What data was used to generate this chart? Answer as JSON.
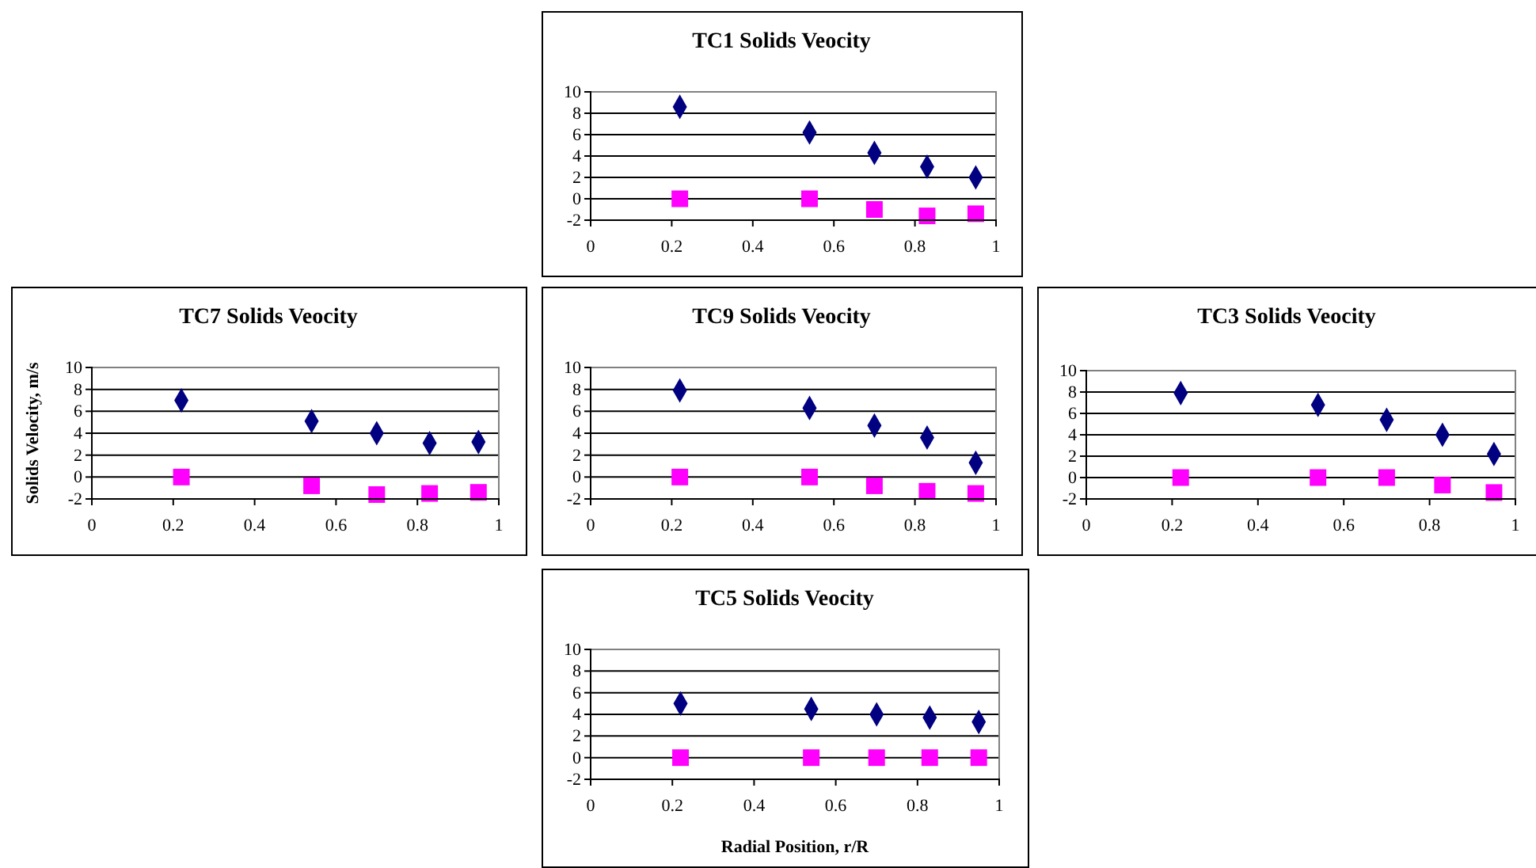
{
  "chart_data": [
    {
      "type": "scatter",
      "title": "TC1 Solids Veocity",
      "x": [
        0.22,
        0.54,
        0.7,
        0.83,
        0.95
      ],
      "xlim": [
        0,
        1
      ],
      "xticks": [
        0,
        0.2,
        0.4,
        0.6,
        0.8,
        1
      ],
      "ylim": [
        -2,
        10
      ],
      "yticks": [
        -2,
        0,
        2,
        4,
        6,
        8,
        10
      ],
      "grid": "y",
      "series": [
        {
          "color": "#000080",
          "marker": "diamond",
          "values": [
            8.6,
            6.2,
            4.3,
            3.0,
            2.0
          ]
        },
        {
          "color": "#ff00ff",
          "marker": "square",
          "values": [
            0,
            0,
            -1.0,
            -1.6,
            -1.4
          ]
        }
      ]
    },
    {
      "type": "scatter",
      "title": "TC7 Solids Veocity",
      "ylabel": "Solids Velocity, m/s",
      "x": [
        0.22,
        0.54,
        0.7,
        0.83,
        0.95
      ],
      "xlim": [
        0,
        1
      ],
      "xticks": [
        0,
        0.2,
        0.4,
        0.6,
        0.8,
        1
      ],
      "ylim": [
        -2,
        10
      ],
      "yticks": [
        -2,
        0,
        2,
        4,
        6,
        8,
        10
      ],
      "grid": "y",
      "series": [
        {
          "color": "#000080",
          "marker": "diamond",
          "values": [
            7.0,
            5.1,
            4.0,
            3.1,
            3.2
          ]
        },
        {
          "color": "#ff00ff",
          "marker": "square",
          "values": [
            0,
            -0.8,
            -1.6,
            -1.5,
            -1.4
          ]
        }
      ]
    },
    {
      "type": "scatter",
      "title": "TC9 Solids Veocity",
      "x": [
        0.22,
        0.54,
        0.7,
        0.83,
        0.95
      ],
      "xlim": [
        0,
        1
      ],
      "xticks": [
        0,
        0.2,
        0.4,
        0.6,
        0.8,
        1
      ],
      "ylim": [
        -2,
        10
      ],
      "yticks": [
        -2,
        0,
        2,
        4,
        6,
        8,
        10
      ],
      "grid": "y",
      "series": [
        {
          "color": "#000080",
          "marker": "diamond",
          "values": [
            7.9,
            6.3,
            4.7,
            3.6,
            1.3
          ]
        },
        {
          "color": "#ff00ff",
          "marker": "square",
          "values": [
            0,
            0,
            -0.8,
            -1.3,
            -1.5
          ]
        }
      ]
    },
    {
      "type": "scatter",
      "title": "TC3 Solids Veocity",
      "x": [
        0.22,
        0.54,
        0.7,
        0.83,
        0.95
      ],
      "xlim": [
        0,
        1
      ],
      "xticks": [
        0,
        0.2,
        0.4,
        0.6,
        0.8,
        1
      ],
      "ylim": [
        -2,
        10
      ],
      "yticks": [
        -2,
        0,
        2,
        4,
        6,
        8,
        10
      ],
      "grid": "y",
      "series": [
        {
          "color": "#000080",
          "marker": "diamond",
          "values": [
            7.9,
            6.8,
            5.4,
            4.0,
            2.2
          ]
        },
        {
          "color": "#ff00ff",
          "marker": "square",
          "values": [
            0,
            0,
            0,
            -0.7,
            -1.4
          ]
        }
      ]
    },
    {
      "type": "scatter",
      "title": "TC5 Solids Veocity",
      "xlabel": "Radial Position, r/R",
      "x": [
        0.22,
        0.54,
        0.7,
        0.83,
        0.95
      ],
      "xlim": [
        0,
        1
      ],
      "xticks": [
        0,
        0.2,
        0.4,
        0.6,
        0.8,
        1
      ],
      "ylim": [
        -2,
        10
      ],
      "yticks": [
        -2,
        0,
        2,
        4,
        6,
        8,
        10
      ],
      "grid": "y",
      "series": [
        {
          "color": "#000080",
          "marker": "diamond",
          "values": [
            5.0,
            4.5,
            4.0,
            3.7,
            3.3
          ]
        },
        {
          "color": "#ff00ff",
          "marker": "square",
          "values": [
            0,
            0,
            0,
            0,
            0
          ]
        }
      ]
    }
  ]
}
